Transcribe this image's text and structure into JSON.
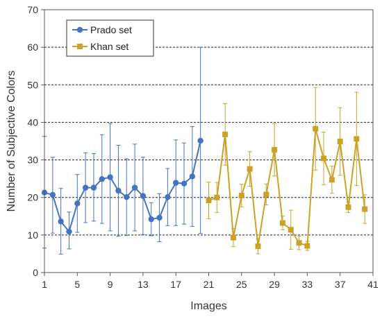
{
  "chart_data": {
    "type": "line",
    "title": "",
    "xlabel": "Images",
    "ylabel": "Number of Subjective Colors",
    "xlim": [
      1,
      41
    ],
    "ylim": [
      0,
      70
    ],
    "xticks": [
      1,
      5,
      9,
      13,
      17,
      21,
      25,
      29,
      33,
      37,
      41
    ],
    "yticks": [
      0,
      10,
      20,
      30,
      40,
      50,
      60,
      70
    ],
    "grid": "horizontal dashed",
    "legend_position": "top-left",
    "series": [
      {
        "name": "Prado set",
        "color": "#4472C4",
        "marker": "circle",
        "points": [
          {
            "x": 1,
            "y": 21.3,
            "lo": 6.5,
            "hi": 36.3
          },
          {
            "x": 2,
            "y": 20.7,
            "lo": 10.5,
            "hi": 30.7
          },
          {
            "x": 3,
            "y": 13.6,
            "lo": 4.9,
            "hi": 22.4
          },
          {
            "x": 4,
            "y": 10.9,
            "lo": 6.3,
            "hi": 16.1
          },
          {
            "x": 5,
            "y": 18.4,
            "lo": 10.7,
            "hi": 26.1
          },
          {
            "x": 6,
            "y": 22.6,
            "lo": 13.3,
            "hi": 31.9
          },
          {
            "x": 7,
            "y": 22.6,
            "lo": 13.7,
            "hi": 31.7
          },
          {
            "x": 8,
            "y": 24.9,
            "lo": 13.1,
            "hi": 36.7
          },
          {
            "x": 9,
            "y": 25.4,
            "lo": 11.1,
            "hi": 39.7
          },
          {
            "x": 10,
            "y": 21.8,
            "lo": 9.7,
            "hi": 33.9
          },
          {
            "x": 11,
            "y": 20.1,
            "lo": 9.9,
            "hi": 30.3
          },
          {
            "x": 12,
            "y": 22.6,
            "lo": 11.1,
            "hi": 34.2
          },
          {
            "x": 13,
            "y": 20.4,
            "lo": 10.1,
            "hi": 30.7
          },
          {
            "x": 14,
            "y": 14.2,
            "lo": 9.8,
            "hi": 18.6
          },
          {
            "x": 15,
            "y": 14.6,
            "lo": 8.2,
            "hi": 21.0
          },
          {
            "x": 16,
            "y": 20.1,
            "lo": 12.5,
            "hi": 27.7
          },
          {
            "x": 17,
            "y": 23.9,
            "lo": 12.5,
            "hi": 35.3
          },
          {
            "x": 18,
            "y": 23.7,
            "lo": 12.9,
            "hi": 34.5
          },
          {
            "x": 19,
            "y": 25.6,
            "lo": 12.3,
            "hi": 38.9
          },
          {
            "x": 20,
            "y": 35.1,
            "lo": 10.4,
            "hi": 60.0
          }
        ]
      },
      {
        "name": "Khan set",
        "color": "#C9A227",
        "marker": "square",
        "points": [
          {
            "x": 21,
            "y": 19.2,
            "lo": 14.3,
            "hi": 24.1
          },
          {
            "x": 22,
            "y": 20.0,
            "lo": 16.0,
            "hi": 24.0
          },
          {
            "x": 23,
            "y": 36.8,
            "lo": 28.6,
            "hi": 45.0
          },
          {
            "x": 24,
            "y": 9.3,
            "lo": 6.9,
            "hi": 11.7
          },
          {
            "x": 25,
            "y": 20.5,
            "lo": 17.5,
            "hi": 23.5
          },
          {
            "x": 26,
            "y": 27.6,
            "lo": 23.0,
            "hi": 32.2
          },
          {
            "x": 27,
            "y": 7.0,
            "lo": 5.0,
            "hi": 9.0
          },
          {
            "x": 28,
            "y": 20.8,
            "lo": 18.0,
            "hi": 23.6
          },
          {
            "x": 29,
            "y": 32.7,
            "lo": 25.7,
            "hi": 39.7
          },
          {
            "x": 30,
            "y": 13.2,
            "lo": 11.4,
            "hi": 15.0
          },
          {
            "x": 31,
            "y": 11.4,
            "lo": 6.2,
            "hi": 16.6
          },
          {
            "x": 32,
            "y": 7.9,
            "lo": 6.1,
            "hi": 9.7
          },
          {
            "x": 33,
            "y": 7.1,
            "lo": 5.9,
            "hi": 8.3
          },
          {
            "x": 34,
            "y": 38.3,
            "lo": 27.3,
            "hi": 49.3
          },
          {
            "x": 35,
            "y": 30.4,
            "lo": 23.4,
            "hi": 37.4
          },
          {
            "x": 36,
            "y": 24.7,
            "lo": 21.1,
            "hi": 28.3
          },
          {
            "x": 37,
            "y": 34.9,
            "lo": 25.9,
            "hi": 43.9
          },
          {
            "x": 38,
            "y": 17.4,
            "lo": 16.0,
            "hi": 18.8
          },
          {
            "x": 39,
            "y": 35.6,
            "lo": 23.2,
            "hi": 48.0
          },
          {
            "x": 40,
            "y": 16.9,
            "lo": 13.1,
            "hi": 20.7
          }
        ]
      }
    ]
  }
}
